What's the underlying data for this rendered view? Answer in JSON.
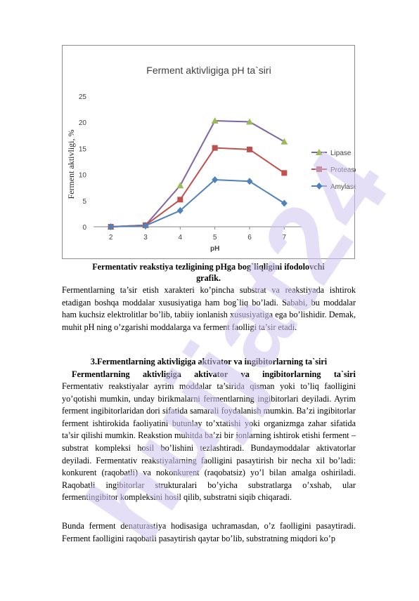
{
  "chart_data": {
    "type": "line",
    "title": "Ferment aktivligiga pH ta`siri",
    "xlabel": "pH",
    "ylabel": "Ferment aktivligi, %",
    "x": [
      2,
      3,
      4,
      5,
      6,
      7
    ],
    "ylim": [
      0,
      25
    ],
    "yticks": [
      0,
      5,
      10,
      15,
      20,
      25
    ],
    "grid": false,
    "legend_position": "right",
    "series": [
      {
        "name": "Lipase",
        "color": "#9bbb59",
        "marker": "triangle",
        "line_color": "#8064a2",
        "values": [
          0,
          0.3,
          7.9,
          20.3,
          20.1,
          16.3
        ]
      },
      {
        "name": "Protease",
        "color": "#c0504d",
        "marker": "square",
        "line_color": "#c0504d",
        "values": [
          0,
          0.3,
          5.2,
          15.1,
          14.8,
          10.3
        ]
      },
      {
        "name": "Amylase",
        "color": "#4f81bd",
        "marker": "diamond",
        "line_color": "#4f81bd",
        "values": [
          0,
          0.2,
          3.1,
          9.0,
          8.7,
          4.5
        ]
      }
    ]
  },
  "caption": {
    "line1": "Fermentativ reakstiya tezligining pHga bog`liqligini ifodolovchi",
    "line2": "grafik."
  },
  "paragraph1": "Fermentlarning ta’sir etish xarakteri ko’pincha substrat va reakstiyada ishtirok etadigan boshqa moddalar xususiyatiga ham bog`liq bo’ladi. Sababi, bu moddalar ham kuchsiz elektrolitlar bo’lib, tabiiy ionlanish xususiyatiga ega bo’lishidir. Demak, muhit pH ning o’zgarishi moddalarga va ferment faolligi ta’sir etadi.",
  "section_heading": "3.Fermentlarning aktivligiga aktivator va ingibitorlarning ta`siri",
  "subheading_words": [
    "Fermentlarning",
    "aktivligiga",
    "aktivator",
    "va",
    "ingibitorlarning",
    "ta`siri"
  ],
  "paragraph2": "Fermentativ reakstiyalar ayrim moddalar ta’sirida qisman yoki to’liq faolligini yo’qotishi mumkin, unday birikmalarni fermentlarning ingibitorlari deyiladi. Ayrim ferment ingibitorlaridan dori sifatida samarali foydalanish mumkin. Ba’zi ingibitorlar ferment ishtirokida faoliyatini butunlay to’xtatishi yoki organizmga zahar sifatida ta’sir qilishi mumkin. Reakstion muhitda ba’zi bir ionlarning ishtirok etishi ferment – substrat kompleksi hosil bo’lishini tezlashtiradi. Bundaymoddalar aktivatorlar deyiladi. Fermentativ reakstiyalarning faolligini pasaytirish bir necha xil bo’ladi: konkurent (raqobatli) va nokonkurent (raqobatsiz) yo’l bilan amalga oshiriladi. Raqobatli ingibitorlar strukturalari bo’yicha substratlarga o’xshab, ular fermentingibitor kompleksini hosil qilib, substratni siqib chiqaradi.",
  "paragraph3": "Bunda ferment denaturastiya hodisasiga uchramasdan, o’z faolligini pasaytiradi. Ferment faolligini raqobatli pasaytirish qaytar bo’lib, substratning miqdori ko’p",
  "watermark": "hujjat24"
}
